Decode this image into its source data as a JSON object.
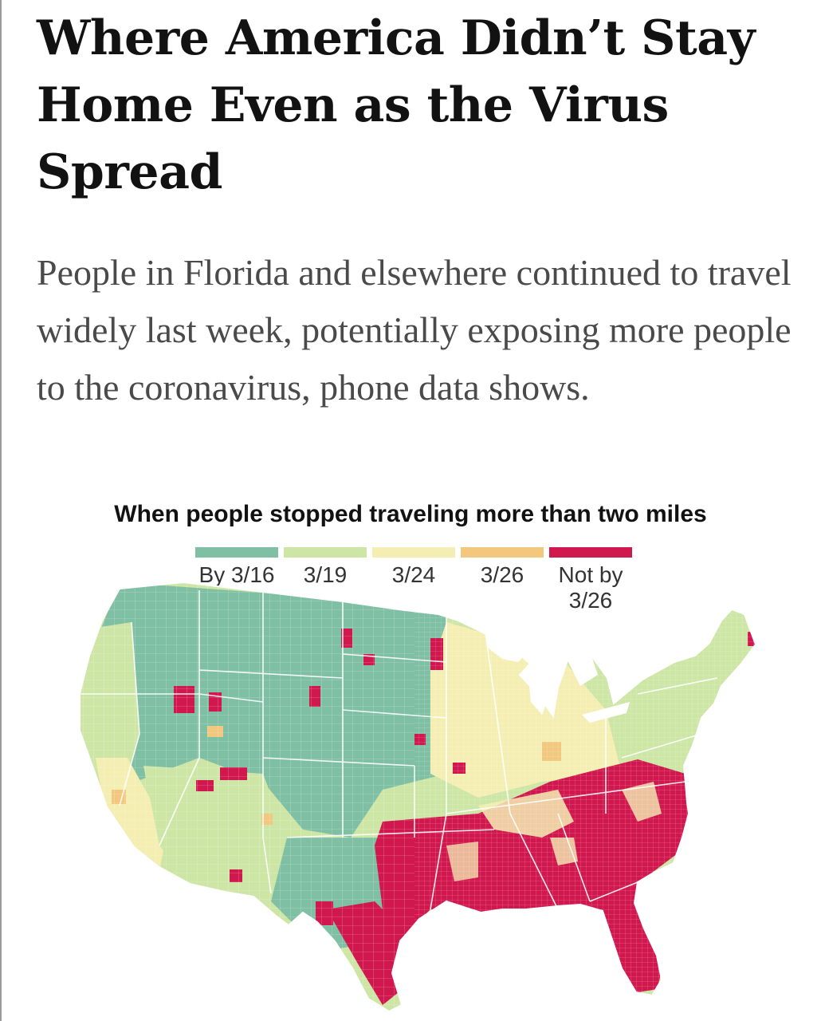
{
  "article": {
    "headline": "Where America Didn’t Stay Home Even as the Virus Spread",
    "dek": "People in Florida and elsewhere continued to travel widely last week, potentially exposing more people to the coronavirus, phone data shows."
  },
  "map": {
    "title": "When people stopped traveling more than two miles",
    "legend": [
      {
        "label": "By 3/16",
        "color": "#7fbfa3"
      },
      {
        "label": "3/19",
        "color": "#cde6a6"
      },
      {
        "label": "3/24",
        "color": "#f4eeb3"
      },
      {
        "label": "3/26",
        "color": "#f2c77e"
      },
      {
        "label": "Not by\n3/26",
        "color": "#d0184f"
      }
    ]
  }
}
